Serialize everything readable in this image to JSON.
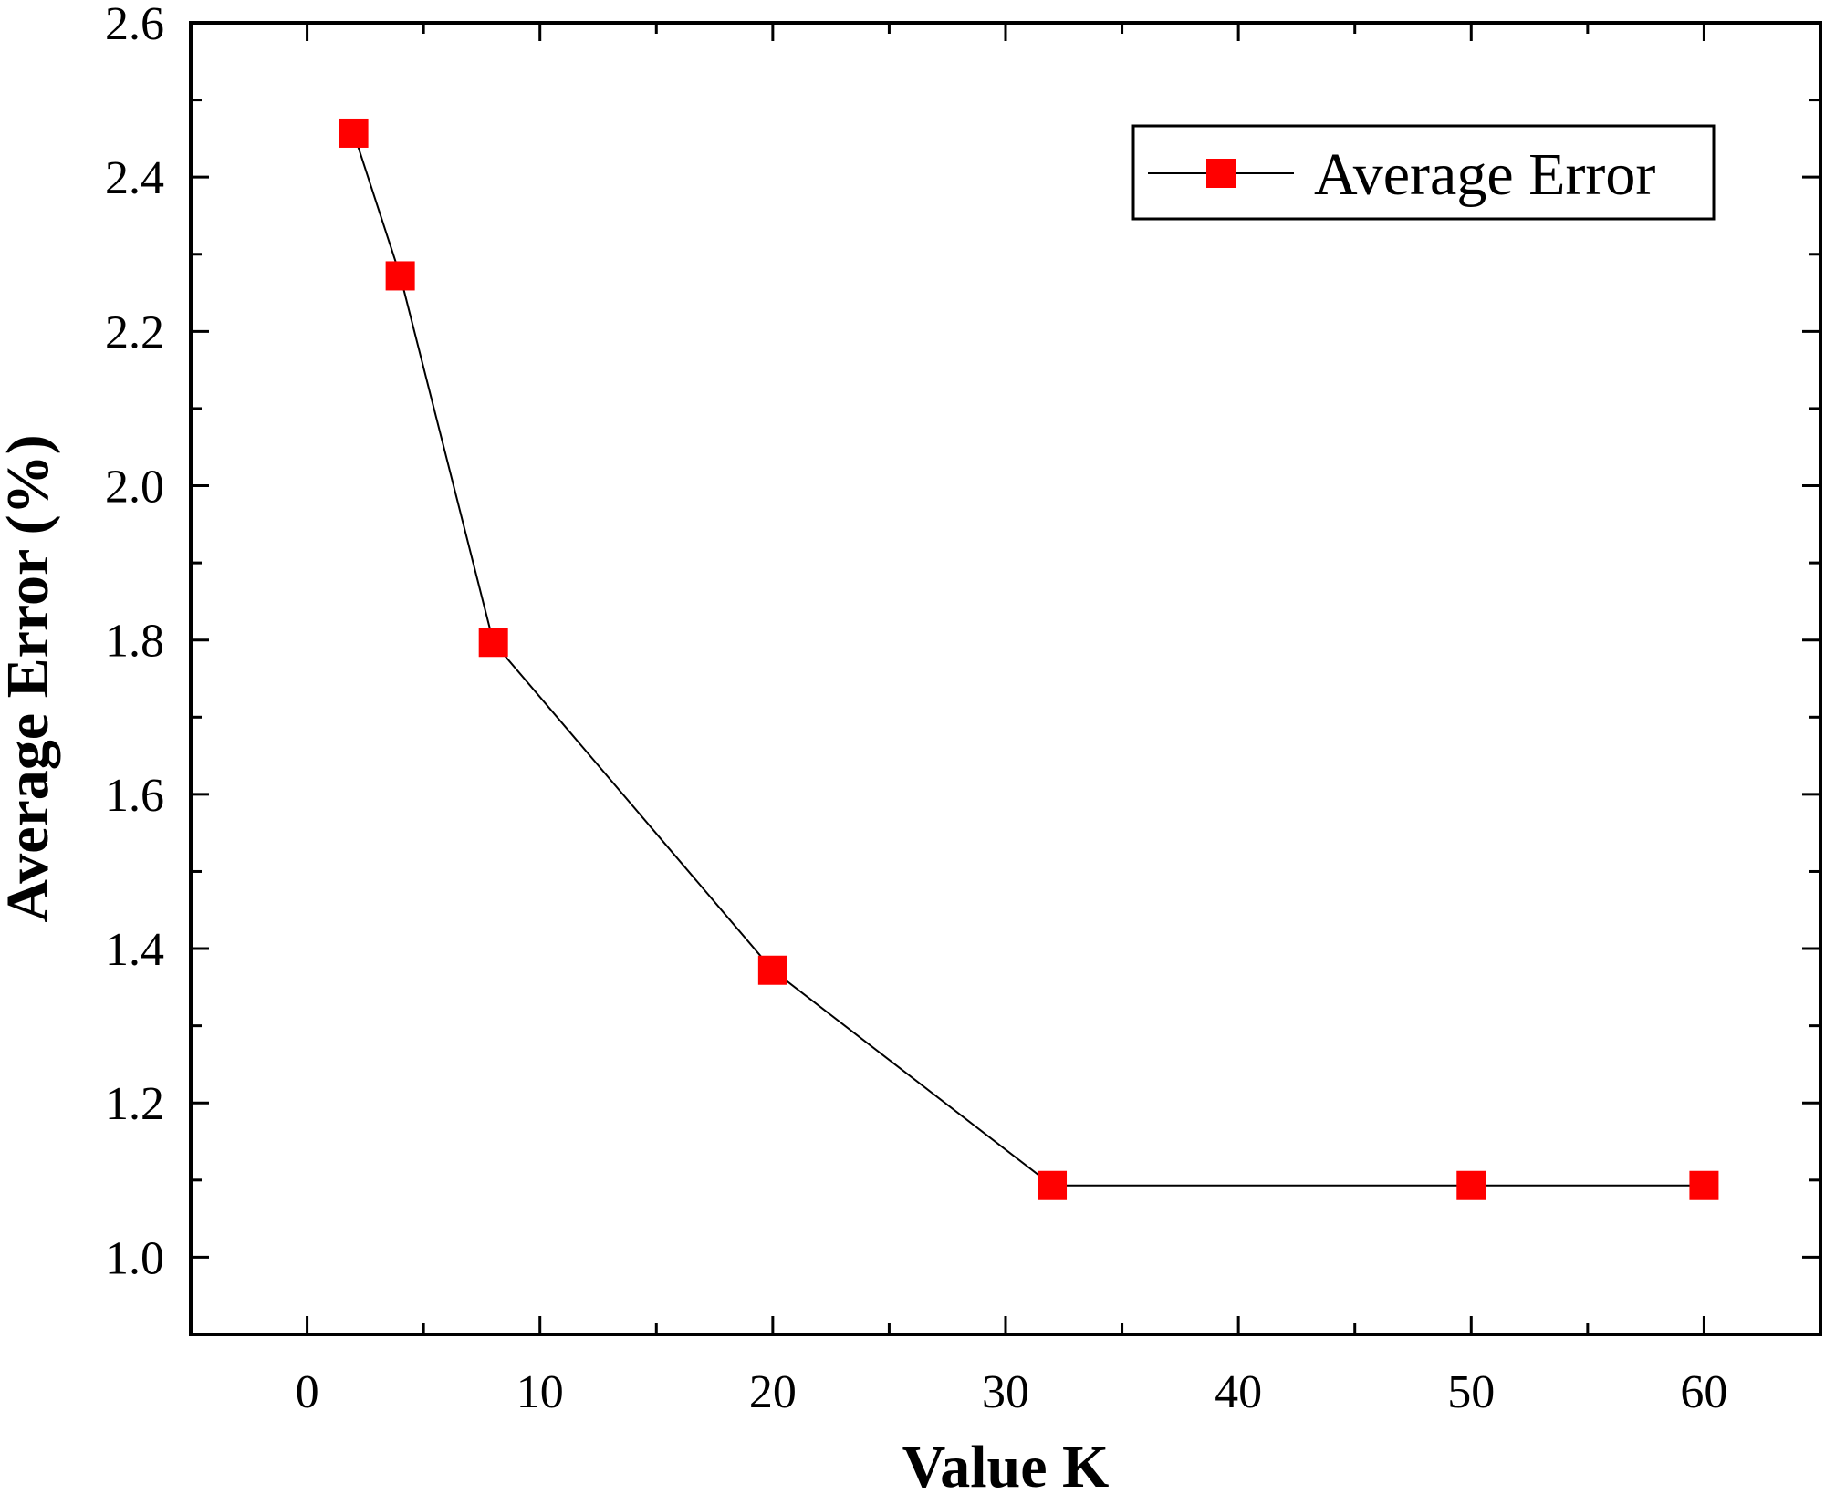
{
  "chart_data": {
    "type": "line",
    "xlabel": "Value K",
    "ylabel": "Average Error (%)",
    "xlim": [
      -5,
      65
    ],
    "ylim": [
      0.9,
      2.6
    ],
    "xticks": [
      0,
      10,
      20,
      30,
      40,
      50,
      60
    ],
    "xtick_labels": [
      "0",
      "10",
      "20",
      "30",
      "40",
      "50",
      "60"
    ],
    "yticks": [
      1.0,
      1.2,
      1.4,
      1.6,
      1.8,
      2.0,
      2.2,
      2.4,
      2.6
    ],
    "ytick_labels": [
      "1.0",
      "1.2",
      "1.4",
      "1.6",
      "1.8",
      "2.0",
      "2.2",
      "2.4",
      "2.6"
    ],
    "grid": false,
    "legend_position": "top-right",
    "series": [
      {
        "name": "Average Error",
        "color": "#ff0000",
        "line_color": "#000000",
        "marker": "square",
        "x": [
          2,
          4,
          8,
          20,
          32,
          50,
          60
        ],
        "y": [
          2.457,
          2.272,
          1.797,
          1.372,
          1.093,
          1.093,
          1.093
        ]
      }
    ]
  }
}
